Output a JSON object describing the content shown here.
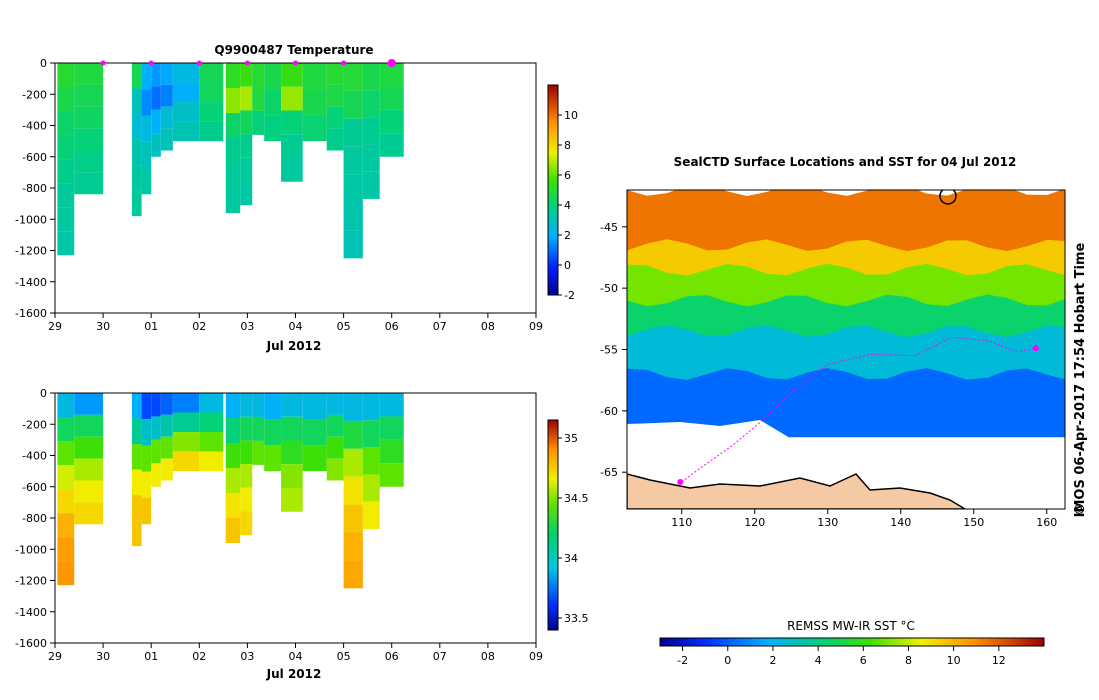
{
  "chart_data": [
    {
      "type": "heatmap",
      "title": "Q9900487  Temperature",
      "xlabel": "Jul 2012",
      "ylabel": "",
      "x_tick_labels": [
        "29",
        "30",
        "01",
        "02",
        "03",
        "04",
        "05",
        "06",
        "07",
        "08",
        "09"
      ],
      "y_tick_labels": [
        "0",
        "-200",
        "-400",
        "-600",
        "-800",
        "-1000",
        "-1200",
        "-1400",
        "-1600"
      ],
      "ylim": [
        -1600,
        0
      ],
      "xlim_days": [
        0,
        10
      ],
      "x_days_note": "x in days from 29 Jun 2012",
      "colorbar": {
        "min": -2,
        "max": 12,
        "ticks": [
          "-2",
          "0",
          "2",
          "4",
          "6",
          "8",
          "10"
        ]
      },
      "surface_markers_day": [
        1.0,
        2.0,
        3.0,
        4.0,
        5.0,
        6.0,
        7.0
      ],
      "profiles": [
        {
          "day": 0.05,
          "width": 0.35,
          "depth": -1230,
          "values": [
            5.0,
            4.6,
            4.2,
            4.0,
            3.7,
            3.5,
            3.4,
            3.3
          ]
        },
        {
          "day": 0.4,
          "width": 0.6,
          "depth": -840,
          "values": [
            4.8,
            4.5,
            4.3,
            4.0,
            3.8,
            3.6
          ]
        },
        {
          "day": 1.6,
          "width": 0.2,
          "depth": -980,
          "values": [
            4.5,
            3.0,
            2.6,
            3.2,
            3.4,
            3.5
          ]
        },
        {
          "day": 1.8,
          "width": 0.2,
          "depth": -840,
          "values": [
            2.0,
            1.4,
            2.4,
            3.0,
            3.3
          ]
        },
        {
          "day": 2.0,
          "width": 0.2,
          "depth": -600,
          "values": [
            1.6,
            1.0,
            2.0,
            2.9
          ]
        },
        {
          "day": 2.2,
          "width": 0.25,
          "depth": -560,
          "values": [
            1.8,
            1.2,
            2.6,
            3.0
          ]
        },
        {
          "day": 2.45,
          "width": 0.55,
          "depth": -500,
          "values": [
            2.4,
            2.0,
            2.8,
            3.1
          ]
        },
        {
          "day": 3.0,
          "width": 0.5,
          "depth": -500,
          "values": [
            4.5,
            4.4,
            4.0,
            3.7
          ]
        },
        {
          "day": 3.55,
          "width": 0.3,
          "depth": -960,
          "values": [
            5.2,
            6.5,
            4.2,
            3.6,
            3.5,
            3.4
          ]
        },
        {
          "day": 3.85,
          "width": 0.25,
          "depth": -910,
          "values": [
            5.5,
            6.8,
            4.4,
            3.7,
            3.5,
            3.3
          ]
        },
        {
          "day": 4.1,
          "width": 0.25,
          "depth": -460,
          "values": [
            5.0,
            4.8,
            4.0
          ]
        },
        {
          "day": 4.35,
          "width": 0.35,
          "depth": -500,
          "values": [
            4.6,
            4.2,
            3.9
          ]
        },
        {
          "day": 4.7,
          "width": 0.45,
          "depth": -760,
          "values": [
            5.4,
            6.6,
            4.0,
            3.6,
            3.4
          ]
        },
        {
          "day": 5.15,
          "width": 0.5,
          "depth": -500,
          "values": [
            4.8,
            4.6,
            4.1
          ]
        },
        {
          "day": 5.65,
          "width": 0.35,
          "depth": -560,
          "values": [
            5.0,
            4.7,
            4.0,
            3.7
          ]
        },
        {
          "day": 6.0,
          "width": 0.4,
          "depth": -1250,
          "values": [
            4.9,
            4.5,
            3.6,
            3.4,
            3.3,
            3.2,
            3.1
          ]
        },
        {
          "day": 6.4,
          "width": 0.35,
          "depth": -870,
          "values": [
            4.6,
            4.2,
            3.6,
            3.4,
            3.3
          ]
        },
        {
          "day": 6.75,
          "width": 0.5,
          "depth": -600,
          "values": [
            4.8,
            4.5,
            4.0,
            3.6
          ]
        }
      ]
    },
    {
      "type": "heatmap",
      "title": "",
      "xlabel": "Jul 2012",
      "ylabel": "",
      "x_tick_labels": [
        "29",
        "30",
        "01",
        "02",
        "03",
        "04",
        "05",
        "06",
        "07",
        "08",
        "09"
      ],
      "y_tick_labels": [
        "0",
        "-200",
        "-400",
        "-600",
        "-800",
        "-1000",
        "-1200",
        "-1400",
        "-1600"
      ],
      "ylim": [
        -1600,
        0
      ],
      "colorbar": {
        "min": 33.4,
        "max": 35.15,
        "ticks": [
          "33.5",
          "34",
          "34.5",
          "35"
        ]
      },
      "profiles": [
        {
          "day": 0.05,
          "width": 0.35,
          "depth": -1230,
          "values": [
            33.95,
            34.2,
            34.4,
            34.55,
            34.65,
            34.75,
            34.8,
            34.82
          ]
        },
        {
          "day": 0.4,
          "width": 0.6,
          "depth": -840,
          "values": [
            33.85,
            34.2,
            34.35,
            34.5,
            34.6,
            34.65
          ]
        },
        {
          "day": 1.6,
          "width": 0.2,
          "depth": -980,
          "values": [
            33.9,
            34.1,
            34.4,
            34.6,
            34.7,
            34.7
          ]
        },
        {
          "day": 1.8,
          "width": 0.2,
          "depth": -840,
          "values": [
            33.7,
            34.0,
            34.4,
            34.6,
            34.7
          ]
        },
        {
          "day": 2.0,
          "width": 0.2,
          "depth": -600,
          "values": [
            33.7,
            34.0,
            34.4,
            34.6
          ]
        },
        {
          "day": 2.2,
          "width": 0.25,
          "depth": -560,
          "values": [
            33.75,
            34.05,
            34.4,
            34.6
          ]
        },
        {
          "day": 2.45,
          "width": 0.55,
          "depth": -500,
          "values": [
            33.8,
            34.1,
            34.45,
            34.65
          ]
        },
        {
          "day": 3.0,
          "width": 0.5,
          "depth": -500,
          "values": [
            33.95,
            34.15,
            34.4,
            34.6
          ]
        },
        {
          "day": 3.55,
          "width": 0.3,
          "depth": -960,
          "values": [
            33.9,
            34.15,
            34.35,
            34.5,
            34.62,
            34.7
          ]
        },
        {
          "day": 3.85,
          "width": 0.25,
          "depth": -910,
          "values": [
            33.95,
            34.2,
            34.35,
            34.5,
            34.6,
            34.65
          ]
        },
        {
          "day": 4.1,
          "width": 0.25,
          "depth": -460,
          "values": [
            33.95,
            34.2,
            34.4
          ]
        },
        {
          "day": 4.35,
          "width": 0.35,
          "depth": -500,
          "values": [
            33.9,
            34.2,
            34.4
          ]
        },
        {
          "day": 4.7,
          "width": 0.45,
          "depth": -760,
          "values": [
            33.95,
            34.2,
            34.3,
            34.45,
            34.5
          ]
        },
        {
          "day": 5.15,
          "width": 0.5,
          "depth": -500,
          "values": [
            33.95,
            34.2,
            34.35
          ]
        },
        {
          "day": 5.65,
          "width": 0.35,
          "depth": -560,
          "values": [
            33.95,
            34.2,
            34.35,
            34.45
          ]
        },
        {
          "day": 6.0,
          "width": 0.4,
          "depth": -1250,
          "values": [
            33.95,
            34.25,
            34.5,
            34.62,
            34.7,
            34.75,
            34.78
          ]
        },
        {
          "day": 6.4,
          "width": 0.35,
          "depth": -870,
          "values": [
            33.95,
            34.2,
            34.4,
            34.5,
            34.6
          ]
        },
        {
          "day": 6.75,
          "width": 0.5,
          "depth": -600,
          "values": [
            33.95,
            34.2,
            34.3,
            34.4
          ]
        }
      ]
    },
    {
      "type": "heatmap",
      "title": "SealCTD Surface Locations and SST for 04 Jul 2012",
      "xlabel": "",
      "ylabel": "",
      "x_tick_labels": [
        "110",
        "120",
        "130",
        "140",
        "150",
        "160"
      ],
      "y_tick_labels": [
        "-45",
        "-50",
        "-55",
        "-60",
        "-65"
      ],
      "xlim": [
        102.5,
        162.5
      ],
      "ylim": [
        -68,
        -42
      ],
      "colorbar_label": "REMSS MW-IR SST °C",
      "colorbar": {
        "min": -3,
        "max": 14,
        "ticks": [
          "-2",
          "0",
          "2",
          "4",
          "6",
          "8",
          "10",
          "12"
        ]
      },
      "sst_bands": [
        {
          "lat_top": -42,
          "lat_bottom": -46.5,
          "value": 11.5
        },
        {
          "lat_top": -46.5,
          "lat_bottom": -48.5,
          "value": 9.5
        },
        {
          "lat_top": -48.5,
          "lat_bottom": -51,
          "value": 7.0
        },
        {
          "lat_top": -51,
          "lat_bottom": -53.5,
          "value": 4.5
        },
        {
          "lat_top": -53.5,
          "lat_bottom": -57,
          "value": 2.5
        },
        {
          "lat_top": -57,
          "lat_bottom": -61.5,
          "value": 0.5
        }
      ],
      "track": [
        {
          "lon": 110,
          "lat": -65.8
        },
        {
          "lon": 112,
          "lat": -64.9
        },
        {
          "lon": 117,
          "lat": -62.8
        },
        {
          "lon": 121,
          "lat": -60.8
        },
        {
          "lon": 125,
          "lat": -58.5
        },
        {
          "lon": 130,
          "lat": -56.2
        },
        {
          "lon": 136,
          "lat": -55.4
        },
        {
          "lon": 142,
          "lat": -55.5
        },
        {
          "lon": 147,
          "lat": -54.0
        },
        {
          "lon": 152,
          "lat": -54.3
        },
        {
          "lon": 156,
          "lat": -55.2
        },
        {
          "lon": 158.5,
          "lat": -54.9
        }
      ],
      "highlight_points": [
        {
          "lon": 158.5,
          "lat": -54.9
        },
        {
          "lon": 109.8,
          "lat": -65.8
        }
      ]
    }
  ],
  "side_caption": "IMOS 06-Apr-2017 17:54 Hobart Time",
  "side_symbol": "©",
  "colors": {
    "land": "#f6c9a5",
    "coast": "#000000",
    "track": "#ff00ff",
    "ice_edge_white": "#ffffff"
  }
}
